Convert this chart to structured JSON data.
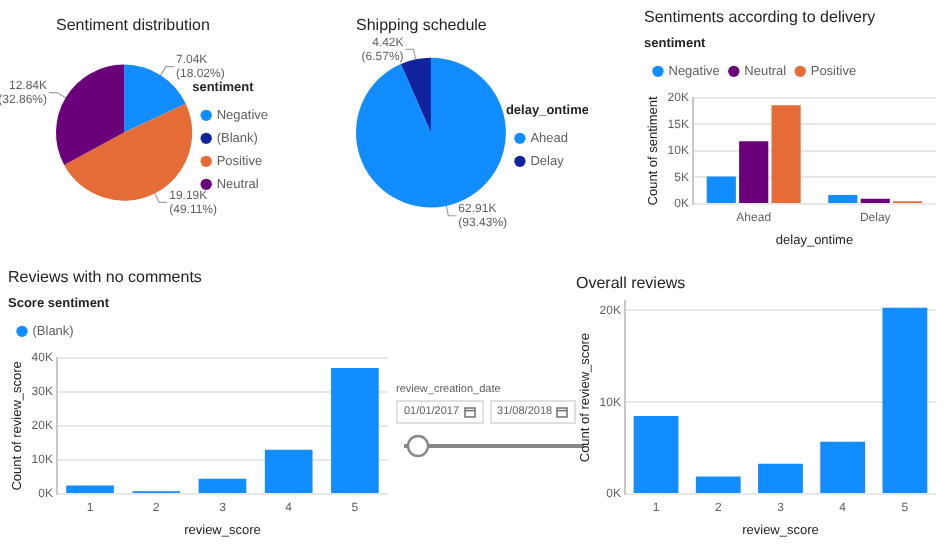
{
  "chart_data": [
    {
      "type": "pie",
      "title": "Sentiment distribution",
      "legend_title": "sentiment",
      "legend": "right",
      "categories": [
        "Negative",
        "(Blank)",
        "Positive",
        "Neutral"
      ],
      "values": [
        7040,
        null,
        19190,
        12840
      ],
      "value_labels": [
        "7.04K (18.02%)",
        null,
        "19.19K (49.11%)",
        "12.84K (32.86%)"
      ],
      "colors": [
        "#118dff",
        "#12239e",
        "#e66c37",
        "#6b007b"
      ]
    },
    {
      "type": "pie",
      "title": "Shipping schedule",
      "legend_title": "delay_ontime",
      "legend": "right",
      "categories": [
        "Ahead",
        "Delay"
      ],
      "values": [
        62910,
        4420
      ],
      "value_labels": [
        "62.91K (93.43%)",
        "4.42K (6.57%)"
      ],
      "colors": [
        "#118dff",
        "#12239e"
      ]
    },
    {
      "type": "bar",
      "title": "Sentiments according to delivery",
      "legend_title": "sentiment",
      "legend": "top left",
      "categories": [
        "Ahead",
        "Delay"
      ],
      "xlabel": "delay_ontime",
      "ylabel": "Count of sentiment",
      "ylim": [
        0,
        20000
      ],
      "yticks": [
        {
          "value": 0,
          "label": "0K"
        },
        {
          "value": 5000,
          "label": "5K"
        },
        {
          "value": 10000,
          "label": "10K"
        },
        {
          "value": 15000,
          "label": "15K"
        },
        {
          "value": 20000,
          "label": "20K"
        }
      ],
      "grid": "y",
      "series": [
        {
          "name": "Negative",
          "color": "#118dff",
          "values": [
            5200,
            1700
          ]
        },
        {
          "name": "Neutral",
          "color": "#6b007b",
          "values": [
            11800,
            1000
          ]
        },
        {
          "name": "Positive",
          "color": "#e66c37",
          "values": [
            18600,
            500
          ]
        }
      ]
    },
    {
      "type": "bar",
      "title": "Reviews with no comments",
      "legend_title": "Score sentiment",
      "legend": "top left",
      "categories": [
        "1",
        "2",
        "3",
        "4",
        "5"
      ],
      "xlabel": "review_score",
      "ylabel": "Count of review_score",
      "ylim": [
        0,
        40000
      ],
      "yticks": [
        {
          "value": 0,
          "label": "0K"
        },
        {
          "value": 10000,
          "label": "10K"
        },
        {
          "value": 20000,
          "label": "20K"
        },
        {
          "value": 30000,
          "label": "30K"
        },
        {
          "value": 40000,
          "label": "40K"
        }
      ],
      "grid": "y",
      "series": [
        {
          "name": "(Blank)",
          "color": "#118dff",
          "values": [
            2500,
            800,
            4500,
            13000,
            37000
          ]
        }
      ]
    },
    {
      "type": "other",
      "title": "review_creation_date",
      "annotations": [
        "01/01/2017",
        "31/08/2018"
      ]
    },
    {
      "type": "bar",
      "title": "Overall reviews",
      "categories": [
        "1",
        "2",
        "3",
        "4",
        "5"
      ],
      "xlabel": "review_score",
      "ylabel": "Count of review_score",
      "ylim": [
        0,
        21000
      ],
      "yticks": [
        {
          "value": 0,
          "label": "0K"
        },
        {
          "value": 10000,
          "label": "10K"
        },
        {
          "value": 20000,
          "label": "20K"
        }
      ],
      "grid": "y",
      "values": [
        8500,
        1900,
        3300,
        5700,
        20300
      ],
      "color": "#118dff"
    }
  ]
}
